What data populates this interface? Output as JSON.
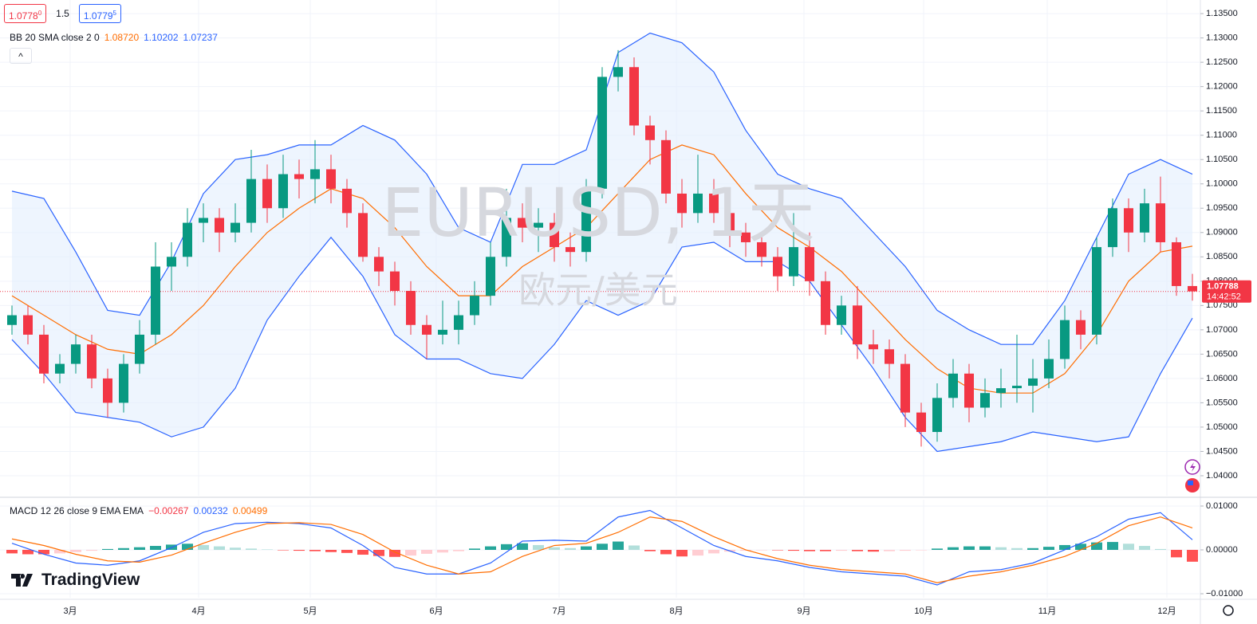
{
  "header": {
    "bid": {
      "main": "1.0778",
      "pip": "0"
    },
    "spread": "1.5",
    "ask": {
      "main": "1.0779",
      "pip": "5"
    }
  },
  "watermark": {
    "symbol": "EURUSD, 1天",
    "name": "欧元/美元"
  },
  "brand": "TradingView",
  "chart_data": [
    {
      "type": "candlestick",
      "xlim": [
        -0.75,
        74.5
      ],
      "xticks": [
        {
          "value": 3.65,
          "label": "3月"
        },
        {
          "value": 11.7,
          "label": "4月"
        },
        {
          "value": 18.7,
          "label": "5月"
        },
        {
          "value": 26.6,
          "label": "6月"
        },
        {
          "value": 34.3,
          "label": "7月"
        },
        {
          "value": 41.65,
          "label": "8月"
        },
        {
          "value": 49.65,
          "label": "9月"
        },
        {
          "value": 57.15,
          "label": "10月"
        },
        {
          "value": 64.9,
          "label": "11月"
        },
        {
          "value": 72.4,
          "label": "12月"
        }
      ],
      "ylim": [
        1.0359,
        1.1378
      ],
      "yticks": [
        {
          "value": 1.04,
          "label": "1.04000"
        },
        {
          "value": 1.045,
          "label": "1.04500"
        },
        {
          "value": 1.05,
          "label": "1.05000"
        },
        {
          "value": 1.055,
          "label": "1.05500"
        },
        {
          "value": 1.06,
          "label": "1.06000"
        },
        {
          "value": 1.065,
          "label": "1.06500"
        },
        {
          "value": 1.07,
          "label": "1.07000"
        },
        {
          "value": 1.075,
          "label": "1.07500"
        },
        {
          "value": 1.08,
          "label": "1.08000"
        },
        {
          "value": 1.085,
          "label": "1.08500"
        },
        {
          "value": 1.09,
          "label": "1.09000"
        },
        {
          "value": 1.095,
          "label": "1.09500"
        },
        {
          "value": 1.1,
          "label": "1.10000"
        },
        {
          "value": 1.105,
          "label": "1.10500"
        },
        {
          "value": 1.11,
          "label": "1.11000"
        },
        {
          "value": 1.115,
          "label": "1.11500"
        },
        {
          "value": 1.12,
          "label": "1.12000"
        },
        {
          "value": 1.125,
          "label": "1.12500"
        },
        {
          "value": 1.13,
          "label": "1.13000"
        },
        {
          "value": 1.135,
          "label": "1.13500"
        }
      ],
      "grid": true,
      "up_color": "#089981",
      "down_color": "#f23645",
      "x": [
        0,
        1,
        2,
        3,
        4,
        5,
        6,
        7,
        8,
        9,
        10,
        11,
        12,
        13,
        14,
        15,
        16,
        17,
        18,
        19,
        20,
        21,
        22,
        23,
        24,
        25,
        26,
        27,
        28,
        29,
        30,
        31,
        32,
        33,
        34,
        35,
        36,
        37,
        38,
        39,
        40,
        41,
        42,
        43,
        44,
        45,
        46,
        47,
        48,
        49,
        50,
        51,
        52,
        53,
        54,
        55,
        56,
        57,
        58,
        59,
        60,
        61,
        62,
        63,
        64,
        65,
        66,
        67,
        68,
        69,
        70,
        71,
        72,
        73,
        74
      ],
      "open": [
        1.071,
        1.073,
        1.069,
        1.061,
        1.063,
        1.067,
        1.06,
        1.055,
        1.063,
        1.069,
        1.083,
        1.085,
        1.092,
        1.093,
        1.09,
        1.092,
        1.101,
        1.095,
        1.102,
        1.101,
        1.103,
        1.099,
        1.094,
        1.085,
        1.082,
        1.078,
        1.071,
        1.069,
        1.07,
        1.073,
        1.077,
        1.085,
        1.093,
        1.091,
        1.092,
        1.087,
        1.086,
        1.099,
        1.122,
        1.124,
        1.112,
        1.109,
        1.098,
        1.094,
        1.098,
        1.094,
        1.09,
        1.088,
        1.085,
        1.081,
        1.087,
        1.08,
        1.071,
        1.075,
        1.067,
        1.066,
        1.063,
        1.053,
        1.049,
        1.056,
        1.061,
        1.054,
        1.057,
        1.058,
        1.0585,
        1.06,
        1.064,
        1.072,
        1.069,
        1.087,
        1.095,
        1.09,
        1.096,
        1.088,
        1.079
      ],
      "high": [
        1.075,
        1.075,
        1.071,
        1.065,
        1.069,
        1.069,
        1.062,
        1.065,
        1.072,
        1.088,
        1.088,
        1.095,
        1.096,
        1.095,
        1.096,
        1.107,
        1.104,
        1.106,
        1.105,
        1.109,
        1.106,
        1.101,
        1.096,
        1.087,
        1.084,
        1.08,
        1.073,
        1.076,
        1.076,
        1.08,
        1.088,
        1.099,
        1.096,
        1.095,
        1.094,
        1.09,
        1.101,
        1.124,
        1.1275,
        1.126,
        1.114,
        1.111,
        1.101,
        1.106,
        1.101,
        1.096,
        1.092,
        1.09,
        1.087,
        1.094,
        1.09,
        1.082,
        1.077,
        1.079,
        1.07,
        1.068,
        1.065,
        1.055,
        1.059,
        1.064,
        1.063,
        1.06,
        1.062,
        1.069,
        1.064,
        1.068,
        1.075,
        1.074,
        1.089,
        1.097,
        1.097,
        1.099,
        1.1015,
        1.089,
        1.0815
      ],
      "low": [
        1.069,
        1.067,
        1.059,
        1.059,
        1.061,
        1.058,
        1.052,
        1.053,
        1.061,
        1.067,
        1.078,
        1.083,
        1.088,
        1.086,
        1.088,
        1.09,
        1.092,
        1.093,
        1.097,
        1.096,
        1.096,
        1.091,
        1.084,
        1.079,
        1.075,
        1.069,
        1.064,
        1.067,
        1.067,
        1.071,
        1.075,
        1.083,
        1.088,
        1.086,
        1.084,
        1.083,
        1.084,
        1.097,
        1.119,
        1.11,
        1.104,
        1.096,
        1.091,
        1.092,
        1.092,
        1.087,
        1.085,
        1.083,
        1.078,
        1.079,
        1.077,
        1.069,
        1.069,
        1.064,
        1.063,
        1.06,
        1.05,
        1.046,
        1.047,
        1.054,
        1.051,
        1.052,
        1.054,
        1.055,
        1.053,
        1.058,
        1.062,
        1.066,
        1.067,
        1.085,
        1.086,
        1.088,
        1.086,
        1.077,
        1.076
      ],
      "close": [
        1.073,
        1.069,
        1.061,
        1.063,
        1.067,
        1.06,
        1.055,
        1.063,
        1.069,
        1.083,
        1.085,
        1.092,
        1.093,
        1.09,
        1.092,
        1.101,
        1.095,
        1.102,
        1.101,
        1.103,
        1.099,
        1.094,
        1.085,
        1.082,
        1.078,
        1.071,
        1.069,
        1.07,
        1.073,
        1.077,
        1.085,
        1.093,
        1.091,
        1.092,
        1.087,
        1.086,
        1.099,
        1.122,
        1.124,
        1.112,
        1.109,
        1.098,
        1.094,
        1.098,
        1.094,
        1.09,
        1.088,
        1.085,
        1.081,
        1.087,
        1.08,
        1.071,
        1.075,
        1.067,
        1.066,
        1.063,
        1.053,
        1.049,
        1.056,
        1.061,
        1.054,
        1.057,
        1.058,
        1.0585,
        1.06,
        1.064,
        1.072,
        1.069,
        1.087,
        1.095,
        1.09,
        1.096,
        1.088,
        1.079,
        1.0779
      ],
      "last_price": 1.07788,
      "last_time": "14:42:52",
      "bands": {
        "label": "BB 20 SMA close 2 0",
        "fill": "#e3effd",
        "series": [
          {
            "color": "#2962ff",
            "legend_value": "1.10202",
            "x": [
              0,
              2,
              4,
              6,
              8,
              10,
              12,
              14,
              16,
              18,
              20,
              22,
              24,
              26,
              28,
              30,
              32,
              34,
              36,
              38,
              40,
              42,
              44,
              46,
              48,
              50,
              52,
              54,
              56,
              58,
              60,
              62,
              64,
              66,
              68,
              70,
              72,
              74
            ],
            "values": [
              1.0985,
              1.097,
              1.086,
              1.074,
              1.073,
              1.084,
              1.098,
              1.105,
              1.106,
              1.108,
              1.108,
              1.112,
              1.109,
              1.102,
              1.091,
              1.088,
              1.104,
              1.104,
              1.107,
              1.127,
              1.131,
              1.129,
              1.123,
              1.111,
              1.102,
              1.099,
              1.097,
              1.09,
              1.083,
              1.074,
              1.07,
              1.067,
              1.067,
              1.076,
              1.089,
              1.102,
              1.105,
              1.102
            ]
          },
          {
            "color": "#ff6d00",
            "legend_value": "1.08720",
            "x": [
              0,
              2,
              4,
              6,
              8,
              10,
              12,
              14,
              16,
              18,
              20,
              22,
              24,
              26,
              28,
              30,
              32,
              34,
              36,
              38,
              40,
              42,
              44,
              46,
              48,
              50,
              52,
              54,
              56,
              58,
              60,
              62,
              64,
              66,
              68,
              70,
              72,
              74
            ],
            "values": [
              1.077,
              1.073,
              1.069,
              1.066,
              1.065,
              1.069,
              1.075,
              1.083,
              1.09,
              1.095,
              1.099,
              1.097,
              1.091,
              1.083,
              1.077,
              1.077,
              1.083,
              1.087,
              1.091,
              1.098,
              1.105,
              1.108,
              1.106,
              1.098,
              1.091,
              1.087,
              1.082,
              1.075,
              1.068,
              1.062,
              1.058,
              1.057,
              1.057,
              1.061,
              1.069,
              1.08,
              1.086,
              1.0872
            ]
          },
          {
            "color": "#2962ff",
            "legend_value": "1.07237",
            "x": [
              0,
              2,
              4,
              6,
              8,
              10,
              12,
              14,
              16,
              18,
              20,
              22,
              24,
              26,
              28,
              30,
              32,
              34,
              36,
              38,
              40,
              42,
              44,
              46,
              48,
              50,
              52,
              54,
              56,
              58,
              60,
              62,
              64,
              66,
              68,
              70,
              72,
              74
            ],
            "values": [
              1.068,
              1.061,
              1.053,
              1.052,
              1.051,
              1.048,
              1.05,
              1.058,
              1.072,
              1.081,
              1.089,
              1.081,
              1.069,
              1.064,
              1.064,
              1.061,
              1.06,
              1.067,
              1.076,
              1.073,
              1.076,
              1.087,
              1.088,
              1.084,
              1.084,
              1.08,
              1.071,
              1.062,
              1.052,
              1.045,
              1.046,
              1.047,
              1.049,
              1.048,
              1.047,
              1.048,
              1.061,
              1.0724
            ]
          }
        ]
      }
    },
    {
      "type": "macd",
      "label": "MACD 12 26 close 9 EMA EMA",
      "xlim": [
        -0.75,
        74.5
      ],
      "ylim": [
        -0.01091,
        0.01145
      ],
      "yticks": [
        {
          "value": 0.01,
          "label": "0.01000"
        },
        {
          "value": 0,
          "label": "0.00000"
        },
        {
          "value": -0.01,
          "label": "−0.01000"
        }
      ],
      "histogram": {
        "legend_value": "−0.00267",
        "legend_color": "#f23645",
        "colors": {
          "up_rising": "#26a69a",
          "up_falling": "#b2dfdb",
          "down_falling": "#ff5252",
          "down_rising": "#ffcdd2"
        },
        "x": [
          0,
          1,
          2,
          3,
          4,
          5,
          6,
          7,
          8,
          9,
          10,
          11,
          12,
          13,
          14,
          15,
          16,
          17,
          18,
          19,
          20,
          21,
          22,
          23,
          24,
          25,
          26,
          27,
          28,
          29,
          30,
          31,
          32,
          33,
          34,
          35,
          36,
          37,
          38,
          39,
          40,
          41,
          42,
          43,
          44,
          45,
          46,
          47,
          48,
          49,
          50,
          51,
          52,
          53,
          54,
          55,
          56,
          57,
          58,
          59,
          60,
          61,
          62,
          63,
          64,
          65,
          66,
          67,
          68,
          69,
          70,
          71,
          72,
          73,
          74
        ],
        "values": [
          -0.0008,
          -0.001,
          -0.001,
          -0.0008,
          -0.0005,
          -0.0002,
          0.0002,
          0.0004,
          0.0006,
          0.0009,
          0.0012,
          0.0014,
          0.0011,
          0.0008,
          0.0005,
          0.0003,
          0.0001,
          -0.0001,
          -0.0002,
          -0.0003,
          -0.0005,
          -0.0007,
          -0.0011,
          -0.0014,
          -0.0016,
          -0.0013,
          -0.0009,
          -0.0006,
          -0.0003,
          0.0003,
          0.0008,
          0.0013,
          0.0015,
          0.0011,
          0.0006,
          0.0004,
          0.0008,
          0.0014,
          0.0019,
          0.001,
          -0.0003,
          -0.001,
          -0.0015,
          -0.0013,
          -0.0008,
          -0.0004,
          -0.0002,
          -0.0001,
          -0.0001,
          -0.0002,
          -0.0003,
          -0.0003,
          -0.0002,
          -0.0003,
          -0.0004,
          -0.0003,
          -0.0002,
          -0.0001,
          0.0003,
          0.0006,
          0.0008,
          0.0008,
          0.0006,
          0.0004,
          0.0004,
          0.0007,
          0.0011,
          0.0014,
          0.0017,
          0.0018,
          0.0014,
          0.0009,
          0.0002,
          -0.0017,
          -0.0027
        ]
      },
      "series": [
        {
          "color": "#2962ff",
          "legend_value": "0.00232",
          "x": [
            0,
            2,
            4,
            6,
            8,
            10,
            12,
            14,
            16,
            18,
            20,
            22,
            24,
            26,
            28,
            30,
            32,
            34,
            36,
            38,
            40,
            42,
            44,
            46,
            48,
            50,
            52,
            54,
            56,
            58,
            60,
            62,
            64,
            66,
            68,
            70,
            72,
            74
          ],
          "values": [
            0.0015,
            -0.001,
            -0.003,
            -0.0035,
            -0.0025,
            0.0005,
            0.004,
            0.006,
            0.0063,
            0.006,
            0.005,
            0.001,
            -0.004,
            -0.0055,
            -0.0055,
            -0.003,
            0.002,
            0.0022,
            0.002,
            0.0075,
            0.009,
            0.005,
            0.001,
            -0.0015,
            -0.0025,
            -0.004,
            -0.005,
            -0.0055,
            -0.006,
            -0.008,
            -0.005,
            -0.0045,
            -0.003,
            0,
            0.003,
            0.007,
            0.0085,
            0.0023
          ]
        },
        {
          "color": "#ff6d00",
          "legend_value": "0.00499",
          "x": [
            0,
            2,
            4,
            6,
            8,
            10,
            12,
            14,
            16,
            18,
            20,
            22,
            24,
            26,
            28,
            30,
            32,
            34,
            36,
            38,
            40,
            42,
            44,
            46,
            48,
            50,
            52,
            54,
            56,
            58,
            60,
            62,
            64,
            66,
            68,
            70,
            72,
            74
          ],
          "values": [
            0.0025,
            0.001,
            -0.001,
            -0.0025,
            -0.0028,
            -0.0012,
            0.0015,
            0.004,
            0.006,
            0.0062,
            0.0058,
            0.0035,
            -0.0005,
            -0.0035,
            -0.0055,
            -0.005,
            -0.0015,
            0.001,
            0.0015,
            0.004,
            0.0075,
            0.0065,
            0.003,
            0,
            -0.002,
            -0.0035,
            -0.0045,
            -0.005,
            -0.0055,
            -0.0075,
            -0.006,
            -0.005,
            -0.0035,
            -0.0015,
            0.0015,
            0.0055,
            0.0075,
            0.005
          ]
        }
      ]
    }
  ]
}
